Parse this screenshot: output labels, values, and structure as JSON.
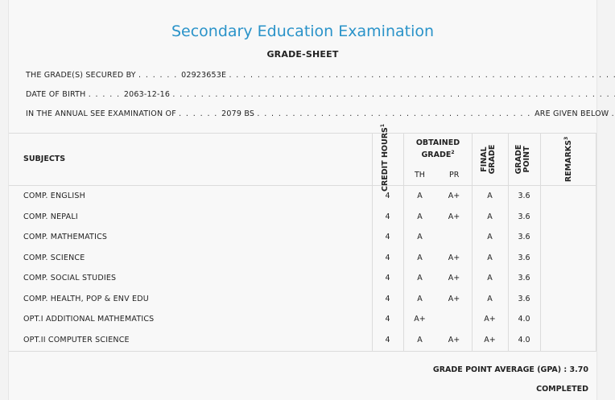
{
  "header": {
    "title": "Secondary Education Examination",
    "subtitle": "GRADE-SHEET"
  },
  "info": {
    "grades_secured_by_label": "THE GRADE(S) SECURED BY",
    "symbol_number": "02923653E",
    "dob_label": "DATE OF BIRTH",
    "dob": "2063-12-16",
    "exam_label": "IN THE ANNUAL SEE EXAMINATION OF",
    "exam_year": "2079 BS",
    "given_below": "ARE GIVEN BELOW . . ."
  },
  "table": {
    "headers": {
      "subjects": "SUBJECTS",
      "credit_hours": "CREDIT HOURS",
      "credit_hours_sup": "1",
      "obtained_grade": "OBTAINED GRADE",
      "obtained_grade_line1": "OBTAINED",
      "obtained_grade_line2": "GRADE",
      "obtained_grade_sup": "2",
      "th": "TH",
      "pr": "PR",
      "final_grade_line1": "FINAL",
      "final_grade_line2": "GRADE",
      "grade_point_line1": "GRADE",
      "grade_point_line2": "POINT",
      "remarks": "REMARKS",
      "remarks_sup": "3"
    },
    "rows": [
      {
        "subject": "COMP. ENGLISH",
        "credit": "4",
        "th": "A",
        "pr": "A+",
        "final": "A",
        "gp": "3.6",
        "remarks": ""
      },
      {
        "subject": "COMP. NEPALI",
        "credit": "4",
        "th": "A",
        "pr": "A+",
        "final": "A",
        "gp": "3.6",
        "remarks": ""
      },
      {
        "subject": "COMP. MATHEMATICS",
        "credit": "4",
        "th": "A",
        "pr": "",
        "final": "A",
        "gp": "3.6",
        "remarks": ""
      },
      {
        "subject": "COMP. SCIENCE",
        "credit": "4",
        "th": "A",
        "pr": "A+",
        "final": "A",
        "gp": "3.6",
        "remarks": ""
      },
      {
        "subject": "COMP. SOCIAL STUDIES",
        "credit": "4",
        "th": "A",
        "pr": "A+",
        "final": "A",
        "gp": "3.6",
        "remarks": ""
      },
      {
        "subject": "COMP. HEALTH, POP & ENV EDU",
        "credit": "4",
        "th": "A",
        "pr": "A+",
        "final": "A",
        "gp": "3.6",
        "remarks": ""
      },
      {
        "subject": "OPT.I ADDITIONAL MATHEMATICS",
        "credit": "4",
        "th": "A+",
        "pr": "",
        "final": "A+",
        "gp": "4.0",
        "remarks": ""
      },
      {
        "subject": "OPT.II COMPUTER SCIENCE",
        "credit": "4",
        "th": "A",
        "pr": "A+",
        "final": "A+",
        "gp": "4.0",
        "remarks": ""
      }
    ]
  },
  "summary": {
    "gpa_label": "GRADE POINT AVERAGE (GPA) :",
    "gpa": "3.70",
    "status": "COMPLETED"
  },
  "colors": {
    "title": "#2a93c9",
    "background": "#f8f8f8",
    "lines": "#dcdcdc"
  }
}
